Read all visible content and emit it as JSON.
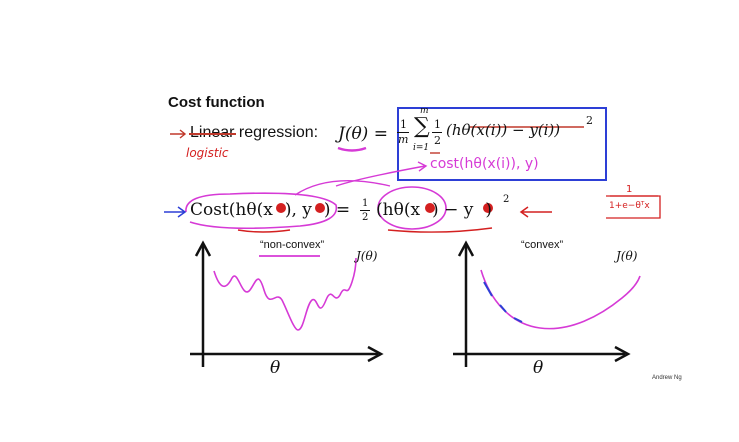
{
  "title": "Cost function",
  "linear_regression": {
    "word": "Linear",
    "rest": " regression:",
    "handwritten_replacement": "logistic"
  },
  "formula_top": {
    "lhs": "J(θ) =",
    "frac_num": "1",
    "frac_den": "m",
    "sum_upper": "m",
    "sum_lower": "i=1",
    "half_num": "1",
    "half_den": "2",
    "body": "(hθ(x(i)) − y(i))",
    "exp": "2"
  },
  "handwritten_cost": "cost(hθ(x(i)), y)",
  "handwritten_sigmoid": {
    "num": "1",
    "den": "1+e−θᵀx"
  },
  "formula_cost": {
    "lhs": "Cost(hθ(x",
    "mid": "), y",
    "eq": ") = ",
    "half_num": "1",
    "half_den": "2",
    "rhs": "(hθ(x",
    "rhs_mid": ") − y",
    "rhs_end": ")",
    "exp": "2"
  },
  "plots": {
    "left": {
      "caption": "“non-convex”",
      "ylabel": "J(θ)",
      "xlabel": "θ"
    },
    "right": {
      "caption": "“convex”",
      "ylabel": "J(θ)",
      "xlabel": "θ"
    }
  },
  "credit": "Andrew Ng",
  "colors": {
    "ink": "#111111",
    "magenta": "#d63ad6",
    "red": "#d42020",
    "blue": "#2d3fd6"
  }
}
